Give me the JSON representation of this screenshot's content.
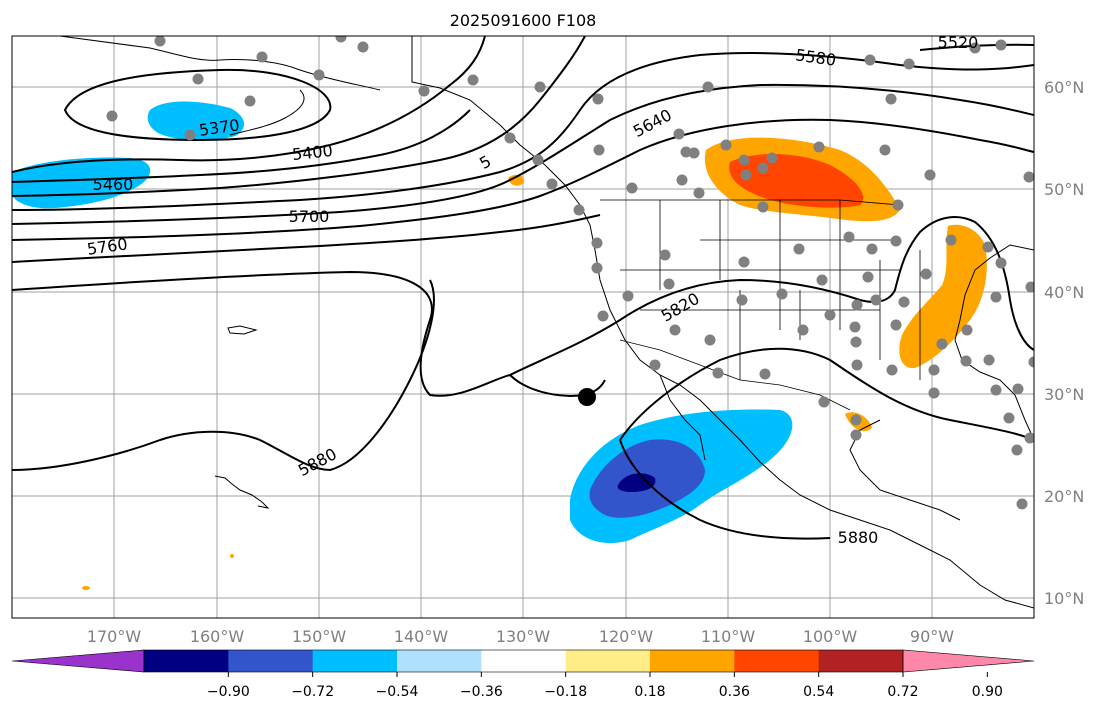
{
  "title": "2025091600 F108",
  "map": {
    "lat_labels": [
      "60°N",
      "50°N",
      "40°N",
      "30°N",
      "20°N",
      "10°N"
    ],
    "lon_labels": [
      "170°W",
      "160°W",
      "150°W",
      "140°W",
      "130°W",
      "120°W",
      "110°W",
      "100°W",
      "90°W"
    ],
    "contour_labels": [
      "5520",
      "5580",
      "5640",
      "5370",
      "5400",
      "5460",
      "5700",
      "5760",
      "5820",
      "5880",
      "5880",
      "5"
    ],
    "colors": {
      "contour": "#000000",
      "grid": "#a0a0a0",
      "station": "#808080",
      "center_point": "#000000"
    }
  },
  "colorbar": {
    "tick_labels": [
      "−0.90",
      "−0.72",
      "−0.54",
      "−0.36",
      "−0.18",
      "0.18",
      "0.36",
      "0.54",
      "0.72",
      "0.90"
    ],
    "colors": [
      "#9933cc",
      "#000080",
      "#3355cc",
      "#00bfff",
      "#b0e0ff",
      "#ffffff",
      "#ffee88",
      "#ffa500",
      "#ff4500",
      "#b22222",
      "#ff88aa"
    ]
  }
}
